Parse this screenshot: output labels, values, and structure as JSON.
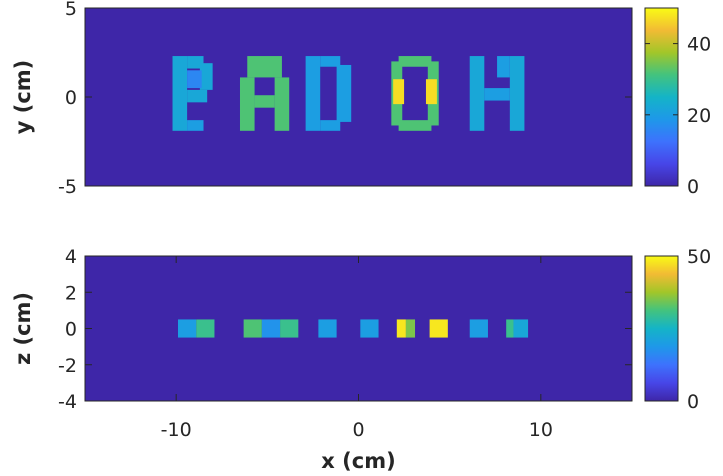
{
  "chart_data": [
    {
      "type": "heatmap",
      "panel": "top",
      "xlim": [
        -15,
        15
      ],
      "ylim": [
        -5,
        5
      ],
      "xlabel": "",
      "ylabel": "y (cm)",
      "yticks": [
        5,
        0,
        -5
      ],
      "ytick_labels": [
        "5",
        "0",
        "-5"
      ],
      "xticks": [],
      "xtick_labels": [],
      "colorbar": {
        "range": [
          0,
          50
        ],
        "ticks": [
          40,
          20,
          0
        ],
        "tick_labels": [
          "40",
          "20",
          "0"
        ]
      },
      "background_value": 0,
      "rects": [
        {
          "x": [
            -10.2,
            -9.4
          ],
          "y": [
            -1.9,
            2.3
          ],
          "value": 22
        },
        {
          "x": [
            -9.4,
            -8.5
          ],
          "y": [
            1.6,
            2.3
          ],
          "value": 22
        },
        {
          "x": [
            -8.7,
            -8.0
          ],
          "y": [
            0.4,
            1.9
          ],
          "value": 22
        },
        {
          "x": [
            -9.4,
            -8.3
          ],
          "y": [
            -0.3,
            0.4
          ],
          "value": 22
        },
        {
          "x": [
            -9.4,
            -8.5
          ],
          "y": [
            -1.9,
            -1.3
          ],
          "value": 20
        },
        {
          "x": [
            -9.4,
            -8.6
          ],
          "y": [
            0.5,
            1.5
          ],
          "value": 16
        },
        {
          "x": [
            -6.5,
            -5.7
          ],
          "y": [
            -1.9,
            1.1
          ],
          "value": 32
        },
        {
          "x": [
            -4.6,
            -3.8
          ],
          "y": [
            -1.9,
            1.1
          ],
          "value": 32
        },
        {
          "x": [
            -6.1,
            -4.2
          ],
          "y": [
            1.1,
            2.3
          ],
          "value": 32
        },
        {
          "x": [
            -5.7,
            -4.6
          ],
          "y": [
            -0.6,
            0.1
          ],
          "value": 32
        },
        {
          "x": [
            -2.9,
            -2.1
          ],
          "y": [
            -1.9,
            2.3
          ],
          "value": 20
        },
        {
          "x": [
            -2.1,
            -1.0
          ],
          "y": [
            1.7,
            2.3
          ],
          "value": 20
        },
        {
          "x": [
            -2.1,
            -1.0
          ],
          "y": [
            -1.9,
            -1.3
          ],
          "value": 20
        },
        {
          "x": [
            -1.2,
            -0.4
          ],
          "y": [
            -1.4,
            1.8
          ],
          "value": 20
        },
        {
          "x": [
            1.8,
            2.4
          ],
          "y": [
            -1.6,
            2.0
          ],
          "value": 32
        },
        {
          "x": [
            3.8,
            4.4
          ],
          "y": [
            -1.6,
            2.0
          ],
          "value": 32
        },
        {
          "x": [
            2.2,
            4.0
          ],
          "y": [
            1.7,
            2.3
          ],
          "value": 32
        },
        {
          "x": [
            2.2,
            4.0
          ],
          "y": [
            -1.9,
            -1.3
          ],
          "value": 32
        },
        {
          "x": [
            1.9,
            2.5
          ],
          "y": [
            -0.4,
            1.0
          ],
          "value": 47
        },
        {
          "x": [
            3.7,
            4.3
          ],
          "y": [
            -0.4,
            1.0
          ],
          "value": 47
        },
        {
          "x": [
            6.1,
            6.9
          ],
          "y": [
            -1.9,
            2.3
          ],
          "value": 22
        },
        {
          "x": [
            8.3,
            9.1
          ],
          "y": [
            -1.9,
            2.3
          ],
          "value": 22
        },
        {
          "x": [
            6.9,
            8.3
          ],
          "y": [
            -0.2,
            0.5
          ],
          "value": 20
        },
        {
          "x": [
            7.6,
            8.3
          ],
          "y": [
            1.1,
            2.3
          ],
          "value": 20
        }
      ]
    },
    {
      "type": "heatmap",
      "panel": "bottom",
      "xlim": [
        -15,
        15
      ],
      "ylim": [
        -4,
        4
      ],
      "xlabel": "x (cm)",
      "ylabel": "z (cm)",
      "yticks": [
        4,
        2,
        0,
        -2,
        -4
      ],
      "ytick_labels": [
        "4",
        "2",
        "0",
        "-2",
        "-4"
      ],
      "xticks": [
        -10,
        0,
        10
      ],
      "xtick_labels": [
        "-10",
        "0",
        "10"
      ],
      "colorbar": {
        "range": [
          0,
          50
        ],
        "ticks": [
          50,
          0
        ],
        "tick_labels": [
          "50",
          "0"
        ]
      },
      "background_value": 0,
      "rects": [
        {
          "x": [
            -9.9,
            -8.9
          ],
          "y": [
            -0.5,
            0.5
          ],
          "value": 20
        },
        {
          "x": [
            -8.9,
            -7.9
          ],
          "y": [
            -0.5,
            0.5
          ],
          "value": 30
        },
        {
          "x": [
            -6.3,
            -5.3
          ],
          "y": [
            -0.5,
            0.5
          ],
          "value": 32
        },
        {
          "x": [
            -5.3,
            -4.3
          ],
          "y": [
            -0.5,
            0.5
          ],
          "value": 18
        },
        {
          "x": [
            -4.3,
            -3.3
          ],
          "y": [
            -0.5,
            0.5
          ],
          "value": 30
        },
        {
          "x": [
            -2.2,
            -1.2
          ],
          "y": [
            -0.5,
            0.5
          ],
          "value": 20
        },
        {
          "x": [
            0.1,
            1.1
          ],
          "y": [
            -0.5,
            0.5
          ],
          "value": 20
        },
        {
          "x": [
            2.1,
            2.6
          ],
          "y": [
            -0.5,
            0.5
          ],
          "value": 48
        },
        {
          "x": [
            2.6,
            3.1
          ],
          "y": [
            -0.5,
            0.5
          ],
          "value": 35
        },
        {
          "x": [
            3.9,
            4.9
          ],
          "y": [
            -0.5,
            0.5
          ],
          "value": 48
        },
        {
          "x": [
            6.1,
            7.1
          ],
          "y": [
            -0.5,
            0.5
          ],
          "value": 20
        },
        {
          "x": [
            8.1,
            8.5
          ],
          "y": [
            -0.5,
            0.5
          ],
          "value": 30
        },
        {
          "x": [
            8.5,
            9.3
          ],
          "y": [
            -0.5,
            0.5
          ],
          "value": 22
        }
      ]
    }
  ]
}
